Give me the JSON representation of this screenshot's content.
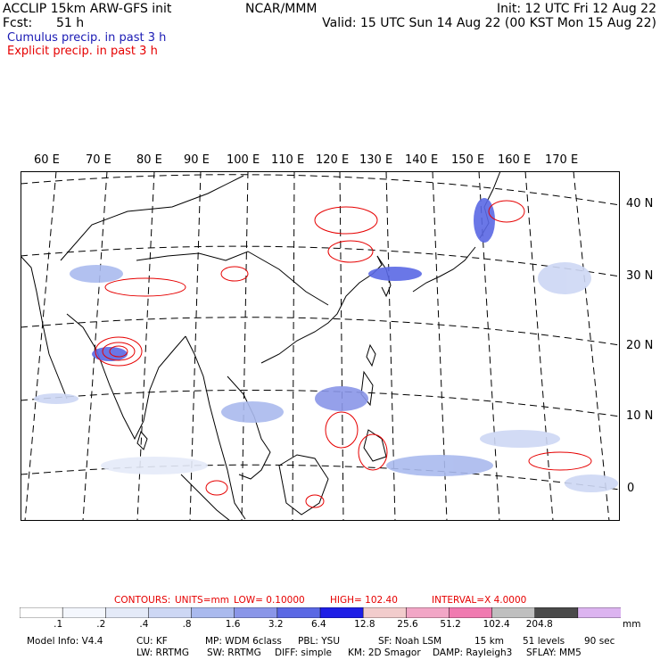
{
  "header": {
    "title": "ACCLIP 15km ARW-GFS init",
    "fcst_label": "Fcst:",
    "fcst_value": "51 h",
    "center": "NCAR/MMM",
    "init": "Init: 12 UTC Fri 12 Aug 22",
    "valid": "Valid: 15 UTC Sun 14 Aug 22 (00 KST Mon 15 Aug 22)",
    "cumulus_label": "Cumulus precip. in past 3 h",
    "explicit_label": "Explicit precip. in past 3 h"
  },
  "colors": {
    "cumulus": "#1a1ab4",
    "explicit": "#e60000",
    "coast": "#000000"
  },
  "map": {
    "lon_labels": [
      "60 E",
      "70 E",
      "80 E",
      "90 E",
      "100 E",
      "110 E",
      "120 E",
      "130 E",
      "140 E",
      "150 E",
      "160 E",
      "170 E"
    ],
    "lat_labels": [
      "40 N",
      "30 N",
      "20 N",
      "10 N",
      "0"
    ]
  },
  "contours": {
    "label": "CONTOURS:",
    "units": "UNITS=mm",
    "low": "LOW= 0.10000",
    "high": "HIGH= 102.40",
    "interval": "INTERVAL=X 4.0000"
  },
  "colorbar": {
    "unit": "mm",
    "colors": [
      "#ffffff",
      "#f4f7fd",
      "#e4eaf8",
      "#cdd7f4",
      "#aabaee",
      "#8a96e8",
      "#5a68e4",
      "#1e1ee6",
      "#f2cccc",
      "#f2a6c6",
      "#f07ab0",
      "#bfbfbf",
      "#4a4a4a",
      "#dcb4f0"
    ],
    "ticks": [
      ".1",
      ".2",
      ".4",
      ".8",
      "1.6",
      "3.2",
      "6.4",
      "12.8",
      "25.6",
      "51.2",
      "102.4",
      "204.8"
    ]
  },
  "footer": {
    "line1": [
      "Model Info: V4.4",
      "CU: KF",
      "MP: WDM 6class",
      "PBL: YSU",
      "SF: Noah LSM",
      "15 km",
      "51 levels",
      "90 sec"
    ],
    "line2": [
      "LW: RRTMG",
      "SW: RRTMG",
      "DIFF: simple",
      "KM: 2D Smagor",
      "DAMP: Rayleigh3",
      "SFLAY: MM5"
    ]
  }
}
